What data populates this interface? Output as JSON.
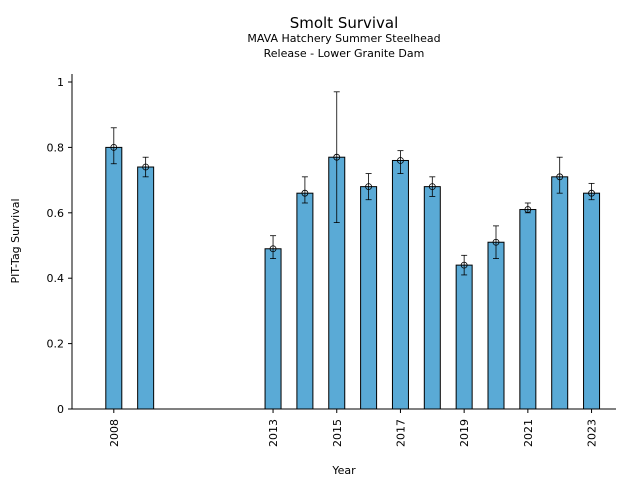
{
  "chart_data": {
    "type": "bar",
    "title": "Smolt Survival",
    "subtitle_lines": [
      "MAVA Hatchery Summer Steelhead",
      "Release - Lower Granite Dam"
    ],
    "xlabel": "Year",
    "ylabel": "PIT-Tag Survival",
    "xlim": [
      2007,
      2024.0
    ],
    "ylim": [
      0,
      1.02
    ],
    "yticks": [
      0,
      0.2,
      0.4,
      0.6,
      0.8,
      1
    ],
    "ytick_labels": [
      "0",
      "0.2",
      "0.4",
      "0.6",
      "0.8",
      "1"
    ],
    "xticks": [
      2008,
      2013,
      2015,
      2017,
      2019,
      2021,
      2023
    ],
    "xtick_labels": [
      "2008",
      "2013",
      "2015",
      "2017",
      "2019",
      "2021",
      "2023"
    ],
    "bar_color": "#5aaad6",
    "bars": [
      {
        "x": 2008,
        "value": 0.8,
        "lower": 0.75,
        "upper": 0.86
      },
      {
        "x": 2009,
        "value": 0.74,
        "lower": 0.71,
        "upper": 0.77
      },
      {
        "x": 2013,
        "value": 0.49,
        "lower": 0.46,
        "upper": 0.53
      },
      {
        "x": 2014,
        "value": 0.66,
        "lower": 0.63,
        "upper": 0.71
      },
      {
        "x": 2015,
        "value": 0.77,
        "lower": 0.57,
        "upper": 0.97
      },
      {
        "x": 2016,
        "value": 0.68,
        "lower": 0.64,
        "upper": 0.72
      },
      {
        "x": 2017,
        "value": 0.76,
        "lower": 0.72,
        "upper": 0.79
      },
      {
        "x": 2018,
        "value": 0.68,
        "lower": 0.65,
        "upper": 0.71
      },
      {
        "x": 2019,
        "value": 0.44,
        "lower": 0.41,
        "upper": 0.47
      },
      {
        "x": 2020,
        "value": 0.51,
        "lower": 0.46,
        "upper": 0.56
      },
      {
        "x": 2021,
        "value": 0.61,
        "lower": 0.6,
        "upper": 0.63
      },
      {
        "x": 2022,
        "value": 0.71,
        "lower": 0.66,
        "upper": 0.77
      },
      {
        "x": 2023,
        "value": 0.66,
        "lower": 0.64,
        "upper": 0.69
      }
    ]
  }
}
